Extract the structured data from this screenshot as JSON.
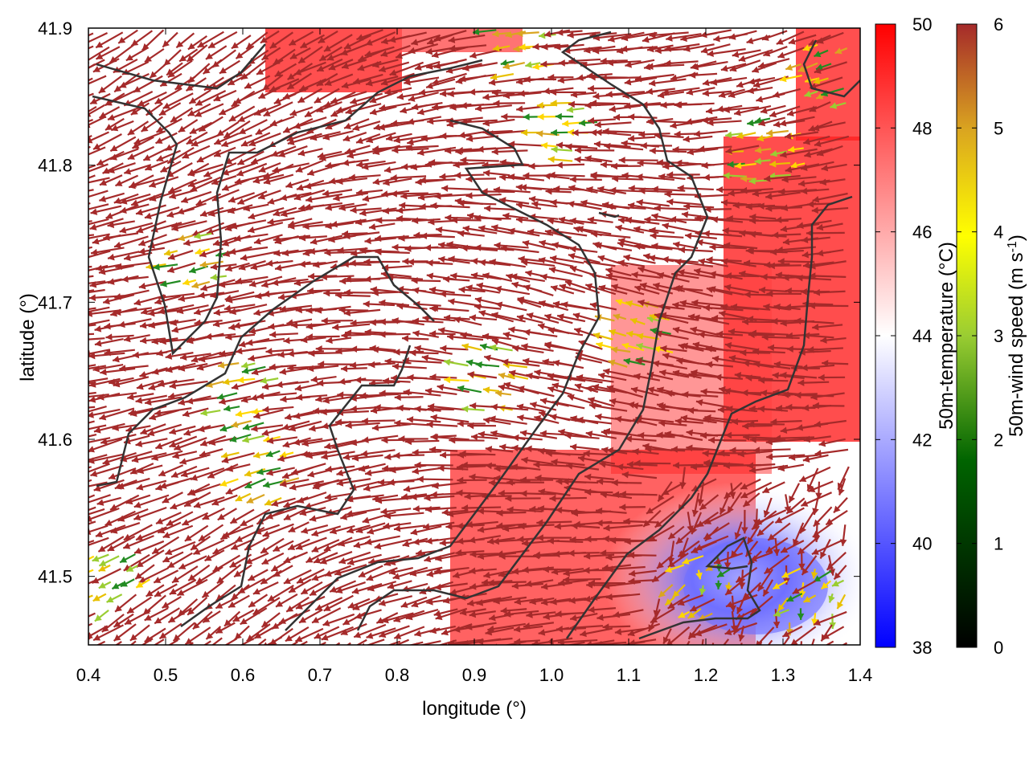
{
  "chart_data": {
    "type": "heatmap",
    "title": "",
    "xlabel": "longitude (°)",
    "ylabel": "latitude (°)",
    "xlim": [
      0.4,
      1.4
    ],
    "ylim": [
      41.45,
      41.9
    ],
    "x_ticks": [
      0.4,
      0.5,
      0.6,
      0.7,
      0.8,
      0.9,
      1.0,
      1.1,
      1.2,
      1.3,
      1.4
    ],
    "x_tick_labels": [
      "0.4",
      "0.5",
      "0.6",
      "0.7",
      "0.8",
      "0.9",
      "1.0",
      "1.1",
      "1.2",
      "1.3",
      "1.4"
    ],
    "y_ticks": [
      41.5,
      41.6,
      41.7,
      41.8,
      41.9
    ],
    "y_tick_labels": [
      "41.5",
      "41.6",
      "41.7",
      "41.8",
      "41.9"
    ],
    "grid": false,
    "layers": [
      {
        "kind": "filled-field",
        "variable": "50m-temperature",
        "unit": "°C"
      },
      {
        "kind": "vector-field",
        "variable": "50m-wind",
        "unit": "m s-1"
      },
      {
        "kind": "contour-lines",
        "variable": "terrain"
      }
    ],
    "colorbars": [
      {
        "label": "50m-temperature (°C)",
        "range": [
          38,
          50
        ],
        "ticks": [
          38,
          40,
          42,
          44,
          46,
          48,
          50
        ],
        "tick_labels": [
          "38",
          "40",
          "42",
          "44",
          "46",
          "48",
          "50"
        ],
        "colors": [
          "#0000ff",
          "#ffffff",
          "#ff0000"
        ]
      },
      {
        "label_main": "50m-wind speed (m s",
        "label_sup": "-1",
        "label_end": ")",
        "range": [
          0,
          6
        ],
        "ticks": [
          0,
          1,
          2,
          3,
          4,
          5,
          6
        ],
        "tick_labels": [
          "0",
          "1",
          "2",
          "3",
          "4",
          "5",
          "6"
        ],
        "colors": [
          "#000000",
          "#006400",
          "#9acd32",
          "#ffff00",
          "#daa520",
          "#b8860b",
          "#a52a2a"
        ]
      }
    ],
    "colors": {
      "vector_dominant": "#a52a2a",
      "contour": "#333333",
      "warm_patch": "#ff0000",
      "cool_patch": "#0000ff"
    }
  }
}
